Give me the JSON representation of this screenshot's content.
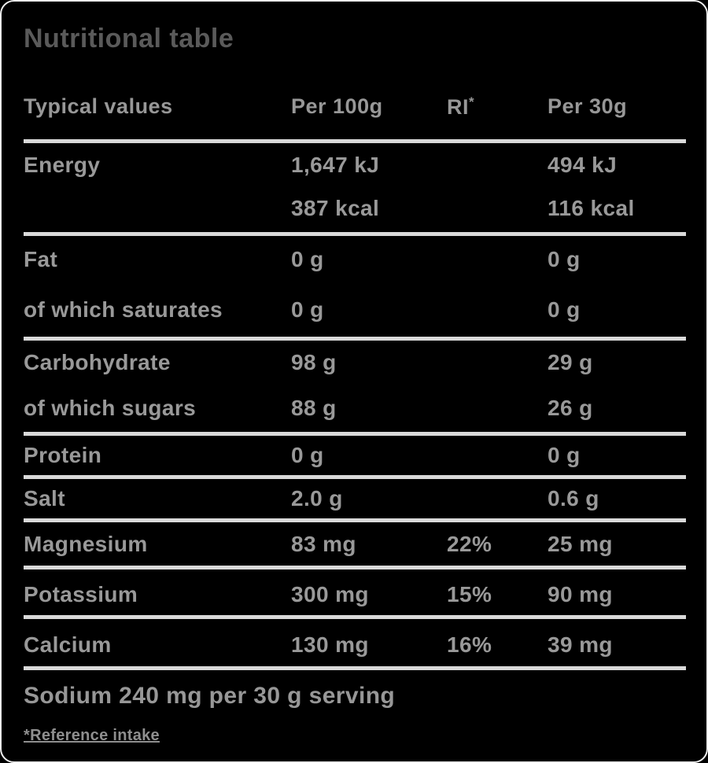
{
  "title": "Nutritional table",
  "table": {
    "headers": {
      "typical_values": "Typical values",
      "per_100g": "Per 100g",
      "ri": "RI",
      "ri_sup": "*",
      "per_30g": "Per 30g"
    },
    "rows": [
      {
        "label": "Energy",
        "per100": "1,647 kJ",
        "per100b": "387 kcal",
        "ri": "",
        "per30": "494 kJ",
        "per30b": "116 kcal"
      },
      {
        "label": "Fat",
        "per100": "0 g",
        "per100b": "",
        "ri": "",
        "per30": "0 g",
        "per30b": ""
      },
      {
        "label": "of which saturates",
        "per100": "0 g",
        "per100b": "",
        "ri": "",
        "per30": "0 g",
        "per30b": ""
      },
      {
        "label": "Carbohydrate",
        "per100": "98 g",
        "per100b": "",
        "ri": "",
        "per30": "29 g",
        "per30b": ""
      },
      {
        "label": "of which sugars",
        "per100": "88 g",
        "per100b": "",
        "ri": "",
        "per30": "26 g",
        "per30b": ""
      },
      {
        "label": "Protein",
        "per100": "0 g",
        "per100b": "",
        "ri": "",
        "per30": "0 g",
        "per30b": ""
      },
      {
        "label": "Salt",
        "per100": "2.0 g",
        "per100b": "",
        "ri": "",
        "per30": "0.6 g",
        "per30b": ""
      },
      {
        "label": "Magnesium",
        "per100": "83 mg",
        "per100b": "",
        "ri": "22%",
        "per30": "25 mg",
        "per30b": ""
      },
      {
        "label": "Potassium",
        "per100": "300 mg",
        "per100b": "",
        "ri": "15%",
        "per30": "90 mg",
        "per30b": ""
      },
      {
        "label": "Calcium",
        "per100": "130 mg",
        "per100b": "",
        "ri": "16%",
        "per30": "39 mg",
        "per30b": ""
      }
    ]
  },
  "footer": {
    "sodium_note": "Sodium 240 mg per 30 g serving",
    "footnote": "*Reference intake"
  },
  "colors": {
    "background": "#000000",
    "title_text": "#5a5a5a",
    "body_text": "#999999",
    "rule": "#d9d9d9"
  }
}
